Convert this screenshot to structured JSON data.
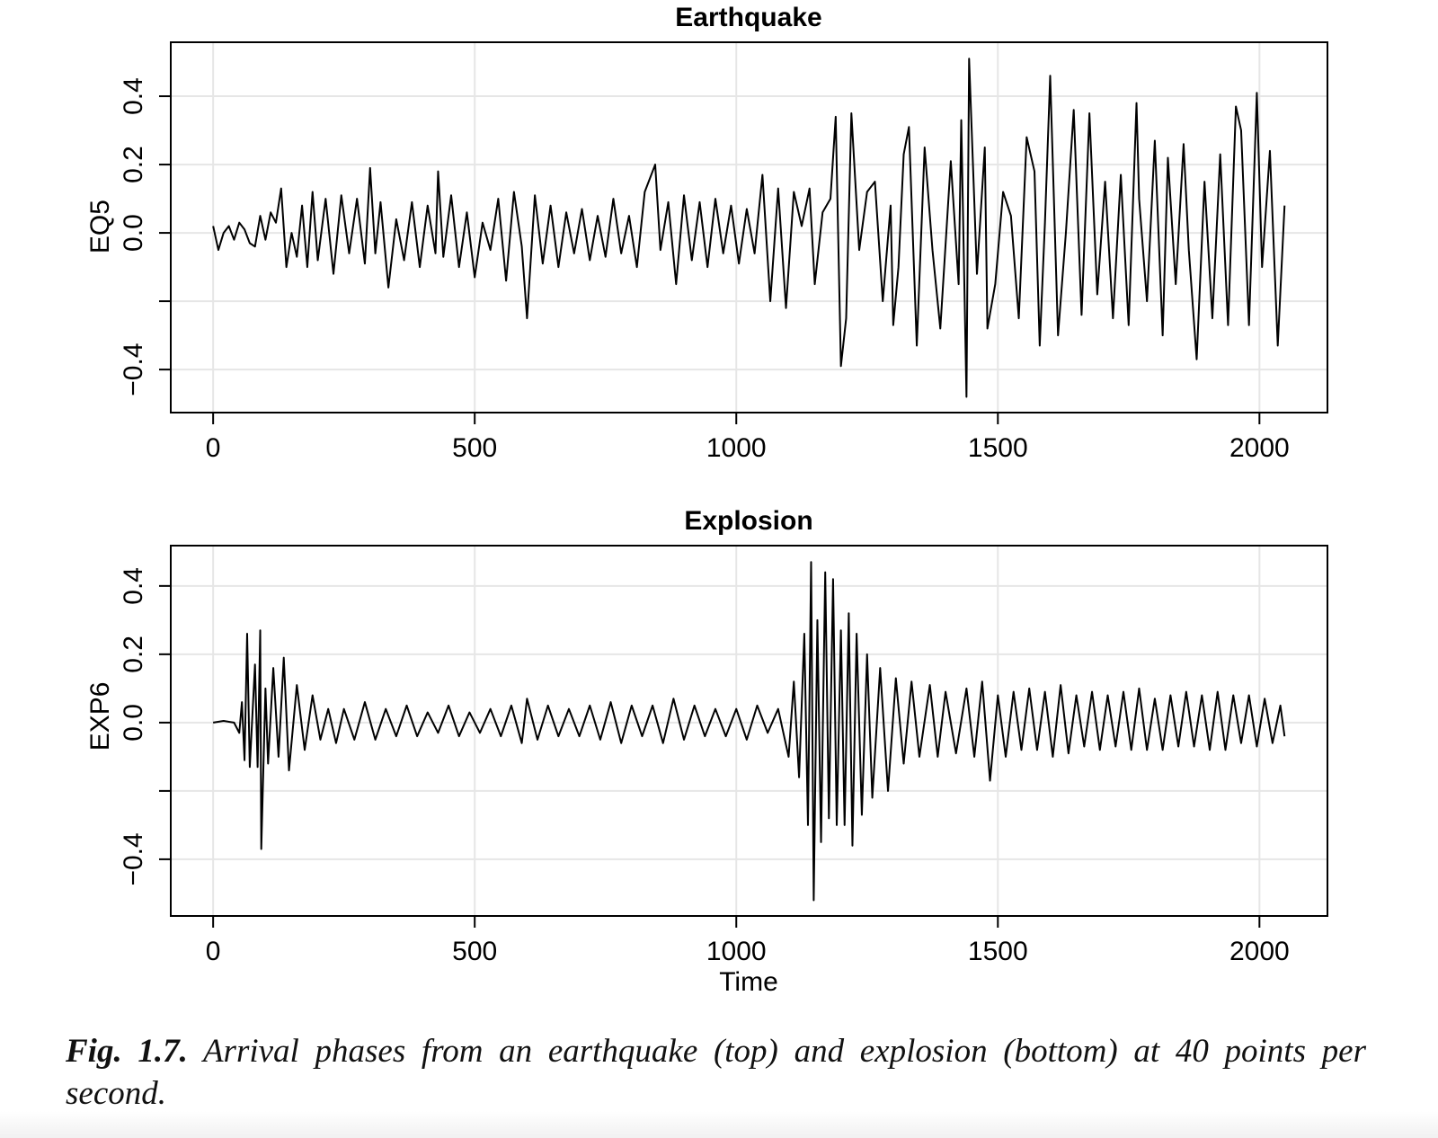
{
  "chart_data": [
    {
      "type": "line",
      "title": "Earthquake",
      "ylabel": "EQ5",
      "color": "#000000",
      "grid": true,
      "grid_color": "#e6e6e6",
      "xlim": [
        -81,
        2130
      ],
      "xticks": [
        0,
        500,
        1000,
        1500,
        2000
      ],
      "ylim": [
        -0.526,
        0.558
      ],
      "yticks": [
        {
          "value": -0.4,
          "label": "−0.4"
        },
        {
          "value": 0,
          "label": "0.0"
        },
        0.2,
        0.4
      ],
      "ygrid": [
        -0.4,
        -0.2,
        0,
        0.2,
        0.4
      ],
      "x": [
        0,
        10,
        20,
        30,
        40,
        50,
        60,
        70,
        80,
        90,
        100,
        110,
        120,
        130,
        140,
        150,
        160,
        170,
        180,
        190,
        200,
        215,
        230,
        245,
        260,
        275,
        290,
        300,
        310,
        320,
        335,
        350,
        365,
        380,
        395,
        410,
        425,
        430,
        440,
        455,
        470,
        485,
        500,
        515,
        530,
        545,
        560,
        575,
        590,
        600,
        615,
        630,
        645,
        660,
        675,
        690,
        705,
        720,
        735,
        750,
        765,
        780,
        795,
        810,
        825,
        845,
        855,
        870,
        885,
        900,
        915,
        930,
        945,
        960,
        975,
        990,
        1005,
        1020,
        1035,
        1050,
        1065,
        1080,
        1095,
        1110,
        1125,
        1140,
        1150,
        1165,
        1180,
        1190,
        1200,
        1210,
        1220,
        1235,
        1250,
        1265,
        1280,
        1295,
        1300,
        1310,
        1320,
        1330,
        1345,
        1360,
        1375,
        1390,
        1410,
        1425,
        1430,
        1440,
        1445,
        1460,
        1475,
        1480,
        1495,
        1510,
        1525,
        1540,
        1555,
        1570,
        1580,
        1590,
        1600,
        1615,
        1630,
        1645,
        1660,
        1675,
        1690,
        1705,
        1720,
        1735,
        1750,
        1765,
        1770,
        1785,
        1800,
        1815,
        1825,
        1840,
        1855,
        1865,
        1880,
        1895,
        1910,
        1925,
        1940,
        1955,
        1965,
        1980,
        1995,
        2005,
        2020,
        2035,
        2048
      ],
      "values": [
        0.02,
        -0.05,
        0.0,
        0.02,
        -0.02,
        0.03,
        0.01,
        -0.03,
        -0.04,
        0.05,
        -0.02,
        0.06,
        0.03,
        0.13,
        -0.1,
        0.0,
        -0.07,
        0.08,
        -0.1,
        0.12,
        -0.08,
        0.1,
        -0.12,
        0.11,
        -0.06,
        0.1,
        -0.09,
        0.19,
        -0.06,
        0.09,
        -0.16,
        0.04,
        -0.08,
        0.09,
        -0.1,
        0.08,
        -0.06,
        0.18,
        -0.07,
        0.11,
        -0.1,
        0.06,
        -0.13,
        0.03,
        -0.05,
        0.1,
        -0.14,
        0.12,
        -0.04,
        -0.25,
        0.11,
        -0.09,
        0.08,
        -0.1,
        0.06,
        -0.06,
        0.07,
        -0.08,
        0.05,
        -0.07,
        0.1,
        -0.06,
        0.05,
        -0.1,
        0.12,
        0.2,
        -0.05,
        0.09,
        -0.15,
        0.11,
        -0.08,
        0.09,
        -0.1,
        0.1,
        -0.06,
        0.08,
        -0.09,
        0.07,
        -0.06,
        0.17,
        -0.2,
        0.13,
        -0.22,
        0.12,
        0.02,
        0.13,
        -0.15,
        0.06,
        0.1,
        0.34,
        -0.39,
        -0.25,
        0.35,
        -0.05,
        0.12,
        0.15,
        -0.2,
        0.08,
        -0.27,
        -0.1,
        0.23,
        0.31,
        -0.33,
        0.25,
        -0.05,
        -0.28,
        0.21,
        -0.15,
        0.33,
        -0.48,
        0.51,
        -0.12,
        0.25,
        -0.28,
        -0.15,
        0.12,
        0.05,
        -0.25,
        0.28,
        0.18,
        -0.33,
        0.03,
        0.46,
        -0.3,
        0.0,
        0.36,
        -0.24,
        0.35,
        -0.18,
        0.15,
        -0.25,
        0.17,
        -0.27,
        0.38,
        0.1,
        -0.2,
        0.27,
        -0.3,
        0.22,
        -0.15,
        0.26,
        -0.05,
        -0.37,
        0.15,
        -0.25,
        0.23,
        -0.27,
        0.37,
        0.3,
        -0.27,
        0.41,
        -0.1,
        0.24,
        -0.33,
        0.08
      ]
    },
    {
      "type": "line",
      "title": "Explosion",
      "ylabel": "EXP6",
      "xlabel": "Time",
      "color": "#000000",
      "grid": true,
      "grid_color": "#e6e6e6",
      "xlim": [
        -81,
        2130
      ],
      "xticks": [
        0,
        500,
        1000,
        1500,
        2000
      ],
      "ylim": [
        -0.566,
        0.518
      ],
      "yticks": [
        {
          "value": -0.4,
          "label": "−0.4"
        },
        {
          "value": 0,
          "label": "0.0"
        },
        0.2,
        0.4
      ],
      "ygrid": [
        -0.4,
        -0.2,
        0,
        0.2,
        0.4
      ],
      "x": [
        0,
        20,
        40,
        50,
        55,
        60,
        65,
        70,
        80,
        85,
        90,
        92,
        100,
        105,
        115,
        125,
        135,
        145,
        160,
        175,
        190,
        205,
        220,
        235,
        250,
        270,
        290,
        310,
        330,
        350,
        370,
        390,
        410,
        430,
        450,
        470,
        490,
        510,
        530,
        550,
        570,
        590,
        600,
        620,
        640,
        660,
        680,
        700,
        720,
        740,
        760,
        780,
        800,
        820,
        840,
        860,
        880,
        900,
        920,
        940,
        960,
        980,
        1000,
        1020,
        1040,
        1060,
        1080,
        1100,
        1110,
        1120,
        1130,
        1137,
        1143,
        1148,
        1155,
        1162,
        1170,
        1177,
        1185,
        1192,
        1200,
        1207,
        1215,
        1222,
        1230,
        1240,
        1250,
        1260,
        1275,
        1290,
        1305,
        1320,
        1335,
        1350,
        1370,
        1385,
        1400,
        1420,
        1440,
        1455,
        1470,
        1485,
        1500,
        1515,
        1530,
        1545,
        1560,
        1575,
        1590,
        1605,
        1620,
        1635,
        1650,
        1665,
        1680,
        1695,
        1710,
        1725,
        1740,
        1755,
        1770,
        1785,
        1800,
        1815,
        1830,
        1845,
        1860,
        1875,
        1890,
        1905,
        1920,
        1935,
        1950,
        1965,
        1980,
        1995,
        2010,
        2025,
        2040,
        2048
      ],
      "values": [
        0,
        0.005,
        0.0,
        -0.03,
        0.06,
        -0.11,
        0.26,
        -0.13,
        0.17,
        -0.13,
        0.27,
        -0.37,
        0.1,
        -0.12,
        0.16,
        -0.1,
        0.19,
        -0.14,
        0.11,
        -0.08,
        0.08,
        -0.05,
        0.04,
        -0.06,
        0.04,
        -0.05,
        0.06,
        -0.05,
        0.04,
        -0.04,
        0.05,
        -0.04,
        0.03,
        -0.03,
        0.05,
        -0.04,
        0.03,
        -0.03,
        0.04,
        -0.04,
        0.05,
        -0.06,
        0.07,
        -0.05,
        0.05,
        -0.04,
        0.04,
        -0.04,
        0.05,
        -0.05,
        0.06,
        -0.06,
        0.05,
        -0.04,
        0.05,
        -0.06,
        0.07,
        -0.05,
        0.05,
        -0.04,
        0.04,
        -0.04,
        0.04,
        -0.05,
        0.05,
        -0.03,
        0.04,
        -0.1,
        0.12,
        -0.16,
        0.26,
        -0.3,
        0.47,
        -0.52,
        0.3,
        -0.35,
        0.44,
        -0.28,
        0.42,
        -0.3,
        0.27,
        -0.3,
        0.32,
        -0.36,
        0.26,
        -0.27,
        0.2,
        -0.22,
        0.16,
        -0.2,
        0.13,
        -0.12,
        0.12,
        -0.1,
        0.11,
        -0.1,
        0.09,
        -0.09,
        0.1,
        -0.1,
        0.12,
        -0.17,
        0.08,
        -0.1,
        0.09,
        -0.08,
        0.1,
        -0.08,
        0.09,
        -0.1,
        0.11,
        -0.09,
        0.08,
        -0.07,
        0.09,
        -0.08,
        0.08,
        -0.07,
        0.09,
        -0.08,
        0.1,
        -0.08,
        0.07,
        -0.08,
        0.08,
        -0.07,
        0.09,
        -0.07,
        0.08,
        -0.08,
        0.09,
        -0.08,
        0.08,
        -0.06,
        0.08,
        -0.07,
        0.07,
        -0.06,
        0.05,
        -0.04
      ]
    }
  ],
  "caption": {
    "label": "Fig. 1.7.",
    "text": "Arrival phases from an earthquake (top) and explosion (bottom) at 40 points per second."
  }
}
